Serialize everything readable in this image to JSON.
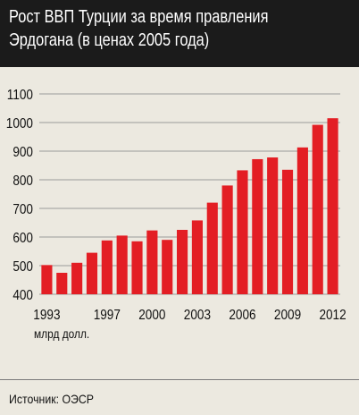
{
  "title_lines": [
    "Рост ВВП Турции за время правления",
    "Эрдогана (в ценах 2005 года)"
  ],
  "unit_label": "млрд долл.",
  "source": "Источник: ОЭСР",
  "colors": {
    "bar": "#e31e24",
    "header_bg": "#1b1b1b",
    "background": "#ece9e0",
    "grid": "#9a9a9a"
  },
  "chart_data": {
    "type": "bar",
    "categories": [
      "1993",
      "1994",
      "1995",
      "1996",
      "1997",
      "1998",
      "1999",
      "2000",
      "2001",
      "2002",
      "2003",
      "2004",
      "2005",
      "2006",
      "2007",
      "2008",
      "2009",
      "2010",
      "2011",
      "2012"
    ],
    "values": [
      502,
      475,
      510,
      545,
      588,
      605,
      585,
      623,
      590,
      625,
      658,
      720,
      780,
      833,
      872,
      878,
      835,
      913,
      992,
      1015
    ],
    "x_tick_labels": [
      "1993",
      "1997",
      "2000",
      "2003",
      "2006",
      "2009",
      "2012"
    ],
    "y_ticks": [
      400,
      500,
      600,
      700,
      800,
      900,
      1000,
      1100
    ],
    "ylim": [
      400,
      1100
    ],
    "grid": true
  }
}
